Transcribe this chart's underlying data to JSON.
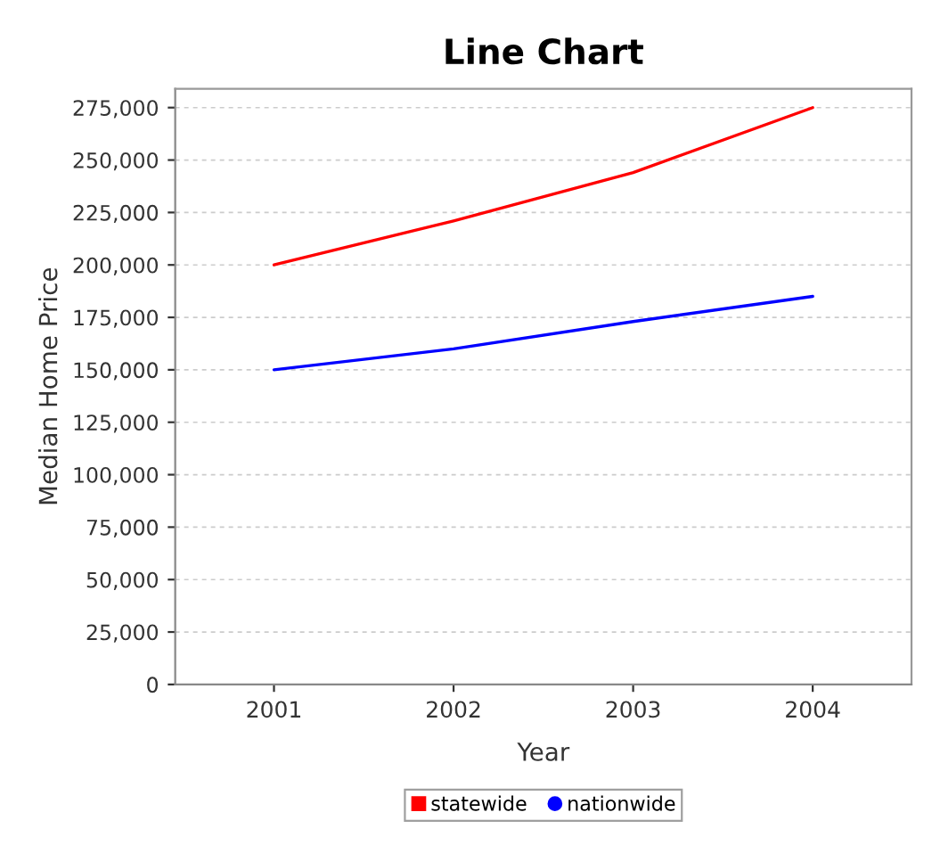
{
  "chart_data": {
    "type": "line",
    "title": "Line Chart",
    "xlabel": "Year",
    "ylabel": "Median Home Price",
    "categories": [
      "2001",
      "2002",
      "2003",
      "2004"
    ],
    "series": [
      {
        "name": "statewide",
        "color": "#ff0000",
        "values": [
          200000,
          221000,
          244000,
          275000
        ]
      },
      {
        "name": "nationwide",
        "color": "#0000ff",
        "values": [
          150000,
          160000,
          173000,
          185000
        ]
      }
    ],
    "ylim": [
      0,
      284000
    ],
    "yticks": [
      {
        "value": 0,
        "label": "0"
      },
      {
        "value": 25000,
        "label": "25,000"
      },
      {
        "value": 50000,
        "label": "50,000"
      },
      {
        "value": 75000,
        "label": "75,000"
      },
      {
        "value": 100000,
        "label": "100,000"
      },
      {
        "value": 125000,
        "label": "125,000"
      },
      {
        "value": 150000,
        "label": "150,000"
      },
      {
        "value": 175000,
        "label": "175,000"
      },
      {
        "value": 200000,
        "label": "200,000"
      },
      {
        "value": 225000,
        "label": "225,000"
      },
      {
        "value": 250000,
        "label": "250,000"
      },
      {
        "value": 275000,
        "label": "275,000"
      }
    ],
    "grid": "y",
    "legend": "bottom"
  }
}
